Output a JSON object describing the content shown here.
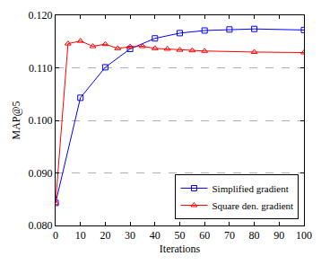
{
  "chart_data": {
    "type": "line",
    "x_label": "Iterations",
    "y_label": "MAP@5",
    "xlim": [
      0,
      100
    ],
    "xticks": [
      0,
      10,
      20,
      30,
      40,
      50,
      60,
      70,
      80,
      90,
      100
    ],
    "ylim": [
      0.08,
      0.12
    ],
    "yticks": [
      {
        "value": 0.08,
        "label": "0.080"
      },
      {
        "value": 0.09,
        "label": "0.090"
      },
      {
        "value": 0.1,
        "label": "0.100"
      },
      {
        "value": 0.11,
        "label": "0.110"
      },
      {
        "value": 0.12,
        "label": "0.120"
      }
    ],
    "grid": true,
    "legend": "lower right",
    "series": [
      {
        "name": "Simplified gradient",
        "color": "#0000ff",
        "marker": "square",
        "line_style": "solid",
        "x": [
          0,
          10,
          20,
          30,
          40,
          50,
          60,
          70,
          80,
          100
        ],
        "values": [
          0.0843,
          0.1043,
          0.1101,
          0.1136,
          0.1156,
          0.1166,
          0.1171,
          0.1173,
          0.1174,
          0.1172
        ]
      },
      {
        "name": "Square den. gradient",
        "color": "#ff0000",
        "marker": "triangle-up",
        "line_style": "solid",
        "x": [
          0,
          5,
          10,
          15,
          20,
          25,
          30,
          35,
          40,
          45,
          50,
          55,
          60,
          80,
          100
        ],
        "values": [
          0.0843,
          0.1146,
          0.1151,
          0.1141,
          0.1145,
          0.1137,
          0.114,
          0.1141,
          0.1137,
          0.1136,
          0.1134,
          0.1133,
          0.1132,
          0.113,
          0.1129
        ]
      }
    ]
  }
}
